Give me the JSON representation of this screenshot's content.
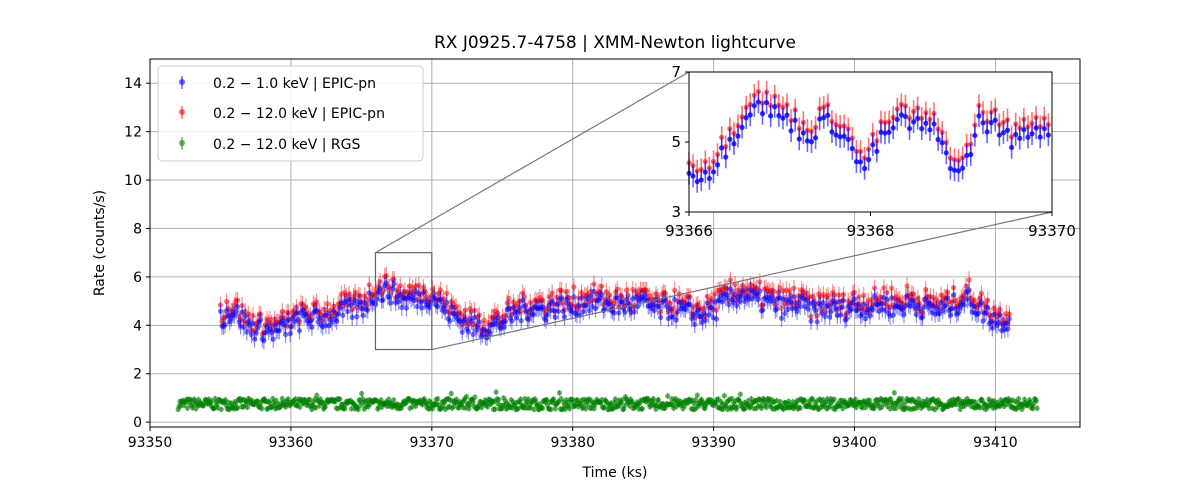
{
  "chart_data": {
    "type": "scatter",
    "title": "RX J0925.7-4758 | XMM-Newton lightcurve",
    "xlabel": "Time (ks)",
    "ylabel": "Rate (counts/s)",
    "xlim": [
      93350,
      93416
    ],
    "ylim": [
      -0.2,
      15
    ],
    "xticks": [
      "93350",
      "93360",
      "93370",
      "93380",
      "93390",
      "93400",
      "93410"
    ],
    "yticks": [
      "0",
      "2",
      "4",
      "6",
      "8",
      "10",
      "12",
      "14"
    ],
    "grid": true,
    "legend_position": "top-left",
    "series": [
      {
        "name": "0.2 − 1.0 keV | EPIC-pn",
        "color": "#0000ff",
        "x_range": [
          93355,
          93411
        ],
        "points": [
          [
            93355,
            4.3
          ],
          [
            93356,
            4.6
          ],
          [
            93357,
            3.9
          ],
          [
            93358,
            3.8
          ],
          [
            93359,
            3.7
          ],
          [
            93360,
            4.0
          ],
          [
            93361,
            4.3
          ],
          [
            93362,
            4.2
          ],
          [
            93363,
            4.4
          ],
          [
            93364,
            4.6
          ],
          [
            93365,
            4.7
          ],
          [
            93366,
            5.3
          ],
          [
            93367,
            5.4
          ],
          [
            93368,
            5.0
          ],
          [
            93369,
            5.1
          ],
          [
            93370,
            5.2
          ],
          [
            93371,
            4.6
          ],
          [
            93372,
            4.2
          ],
          [
            93373,
            3.9
          ],
          [
            93374,
            3.9
          ],
          [
            93375,
            4.1
          ],
          [
            93376,
            4.5
          ],
          [
            93377,
            4.7
          ],
          [
            93378,
            4.6
          ],
          [
            93379,
            4.8
          ],
          [
            93380,
            4.7
          ],
          [
            93381,
            5.0
          ],
          [
            93382,
            4.9
          ],
          [
            93383,
            4.8
          ],
          [
            93384,
            4.8
          ],
          [
            93385,
            4.9
          ],
          [
            93386,
            4.6
          ],
          [
            93387,
            4.7
          ],
          [
            93388,
            4.5
          ],
          [
            93389,
            4.4
          ],
          [
            93390,
            4.6
          ],
          [
            93391,
            5.0
          ],
          [
            93392,
            5.3
          ],
          [
            93393,
            5.0
          ],
          [
            93394,
            4.9
          ],
          [
            93395,
            4.7
          ],
          [
            93396,
            4.9
          ],
          [
            93397,
            4.5
          ],
          [
            93398,
            4.7
          ],
          [
            93399,
            4.6
          ],
          [
            93400,
            4.8
          ],
          [
            93401,
            4.7
          ],
          [
            93402,
            4.9
          ],
          [
            93403,
            4.7
          ],
          [
            93404,
            4.9
          ],
          [
            93405,
            4.7
          ],
          [
            93406,
            4.6
          ],
          [
            93407,
            4.8
          ],
          [
            93408,
            5.1
          ],
          [
            93409,
            4.6
          ],
          [
            93410,
            4.2
          ],
          [
            93411,
            4.2
          ]
        ]
      },
      {
        "name": "0.2 − 12.0 keV | EPIC-pn",
        "color": "#ff0000",
        "x_range": [
          93355,
          93411
        ],
        "offset_from_soft": 0.3
      },
      {
        "name": "0.2 − 12.0 keV | RGS",
        "color": "#008000",
        "x_range": [
          93352,
          93413
        ],
        "mean": 0.75
      }
    ],
    "inset": {
      "xlim": [
        93366,
        93370
      ],
      "ylim": [
        3,
        7
      ],
      "xticks": [
        "93366",
        "93368",
        "93370"
      ],
      "yticks": [
        "3",
        "5",
        "7"
      ],
      "zoom_box": {
        "x": [
          93366,
          93370
        ],
        "y": [
          3,
          7
        ]
      },
      "soft_points": [
        [
          93366.0,
          4.0
        ],
        [
          93366.25,
          4.2
        ],
        [
          93366.5,
          5.2
        ],
        [
          93366.7,
          6.1
        ],
        [
          93366.9,
          5.9
        ],
        [
          93367.1,
          5.6
        ],
        [
          93367.3,
          5.1
        ],
        [
          93367.5,
          5.6
        ],
        [
          93367.7,
          5.3
        ],
        [
          93367.9,
          4.2
        ],
        [
          93368.1,
          5.0
        ],
        [
          93368.3,
          5.6
        ],
        [
          93368.5,
          5.5
        ],
        [
          93368.7,
          5.3
        ],
        [
          93368.85,
          4.6
        ],
        [
          93369.0,
          4.0
        ],
        [
          93369.2,
          5.6
        ],
        [
          93369.4,
          5.4
        ],
        [
          93369.6,
          5.0
        ],
        [
          93369.8,
          5.4
        ],
        [
          93370.0,
          5.3
        ]
      ]
    }
  }
}
